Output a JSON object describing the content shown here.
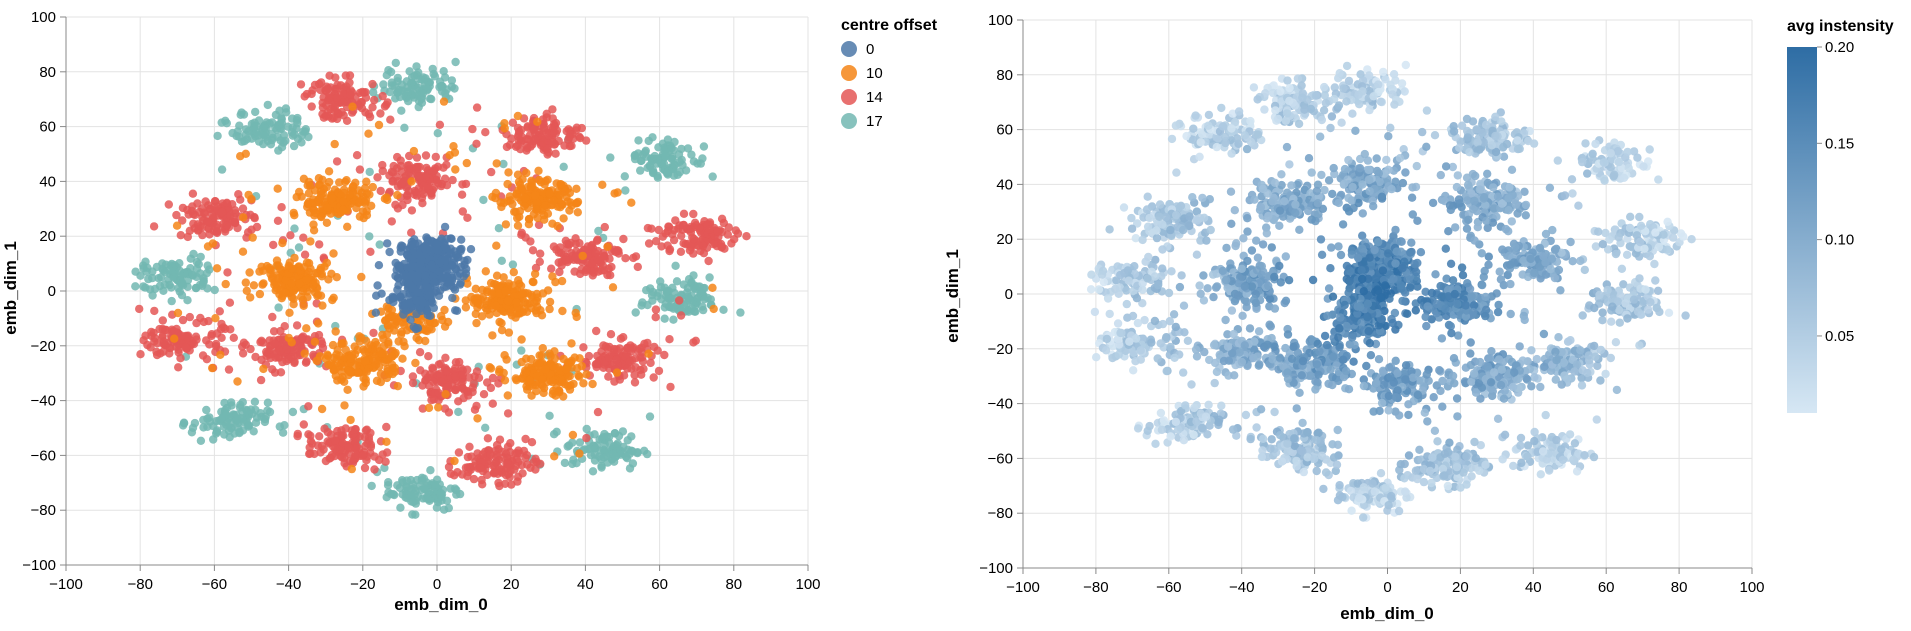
{
  "chart_data": [
    {
      "type": "scatter",
      "title": "",
      "xlabel": "emb_dim_0",
      "ylabel": "emb_dim_1",
      "xlim": [
        -100,
        100
      ],
      "ylim": [
        -100,
        100
      ],
      "xticks": [
        "−100",
        "−80",
        "−60",
        "−40",
        "−20",
        "0",
        "20",
        "40",
        "60",
        "80",
        "100"
      ],
      "yticks": [
        "100",
        "80",
        "60",
        "40",
        "20",
        "0",
        "−20",
        "−40",
        "−60",
        "−80",
        "−100"
      ],
      "grid": true,
      "legend": {
        "title": "centre offset",
        "position": "right",
        "entries": [
          {
            "label": "0",
            "color": "#4c78a8"
          },
          {
            "label": "10",
            "color": "#f58518"
          },
          {
            "label": "14",
            "color": "#e45756"
          },
          {
            "label": "17",
            "color": "#72b7b2"
          }
        ]
      },
      "clusters": [
        {
          "group": "0",
          "x": -2,
          "y": 10,
          "points": 320
        },
        {
          "group": "0",
          "x": -6,
          "y": -2,
          "points": 120
        },
        {
          "group": "10",
          "x": -27,
          "y": 33,
          "points": 150
        },
        {
          "group": "10",
          "x": 27,
          "y": 33,
          "points": 150
        },
        {
          "group": "10",
          "x": -38,
          "y": 4,
          "points": 150
        },
        {
          "group": "10",
          "x": 19,
          "y": -3,
          "points": 170
        },
        {
          "group": "10",
          "x": -20,
          "y": -26,
          "points": 150
        },
        {
          "group": "10",
          "x": 30,
          "y": -31,
          "points": 150
        },
        {
          "group": "10",
          "x": -8,
          "y": -12,
          "points": 80
        },
        {
          "group": "14",
          "x": -25,
          "y": 70,
          "points": 110
        },
        {
          "group": "14",
          "x": 29,
          "y": 57,
          "points": 110
        },
        {
          "group": "14",
          "x": -5,
          "y": 40,
          "points": 110
        },
        {
          "group": "14",
          "x": -60,
          "y": 27,
          "points": 110
        },
        {
          "group": "14",
          "x": 40,
          "y": 13,
          "points": 110
        },
        {
          "group": "14",
          "x": 70,
          "y": 20,
          "points": 110
        },
        {
          "group": "14",
          "x": -68,
          "y": -18,
          "points": 110
        },
        {
          "group": "14",
          "x": -40,
          "y": -21,
          "points": 110
        },
        {
          "group": "14",
          "x": 49,
          "y": -25,
          "points": 110
        },
        {
          "group": "14",
          "x": 3,
          "y": -33,
          "points": 110
        },
        {
          "group": "14",
          "x": -25,
          "y": -57,
          "points": 110
        },
        {
          "group": "14",
          "x": 15,
          "y": -63,
          "points": 110
        },
        {
          "group": "17",
          "x": -5,
          "y": 75,
          "points": 90
        },
        {
          "group": "17",
          "x": -45,
          "y": 59,
          "points": 90
        },
        {
          "group": "17",
          "x": 62,
          "y": 48,
          "points": 90
        },
        {
          "group": "17",
          "x": -70,
          "y": 5,
          "points": 90
        },
        {
          "group": "17",
          "x": 66,
          "y": -3,
          "points": 90
        },
        {
          "group": "17",
          "x": -56,
          "y": -48,
          "points": 90
        },
        {
          "group": "17",
          "x": 45,
          "y": -58,
          "points": 90
        },
        {
          "group": "17",
          "x": -4,
          "y": -73,
          "points": 90
        }
      ]
    },
    {
      "type": "scatter",
      "title": "",
      "xlabel": "emb_dim_0",
      "ylabel": "emb_dim_1",
      "xlim": [
        -100,
        100
      ],
      "ylim": [
        -100,
        100
      ],
      "xticks": [
        "−100",
        "−80",
        "−60",
        "−40",
        "−20",
        "0",
        "20",
        "40",
        "60",
        "80",
        "100"
      ],
      "yticks": [
        "100",
        "80",
        "60",
        "40",
        "20",
        "0",
        "−20",
        "−40",
        "−60",
        "−80",
        "−100"
      ],
      "grid": true,
      "colorscale": {
        "title": "avg instensity",
        "position": "right",
        "domain": [
          0.01,
          0.2
        ],
        "ticks": [
          "0.20",
          "0.15",
          "0.10",
          "0.05"
        ],
        "tick_values": [
          0.2,
          0.15,
          0.1,
          0.05
        ],
        "low_color": "#d6e7f4",
        "high_color": "#2e6da4"
      }
    }
  ]
}
